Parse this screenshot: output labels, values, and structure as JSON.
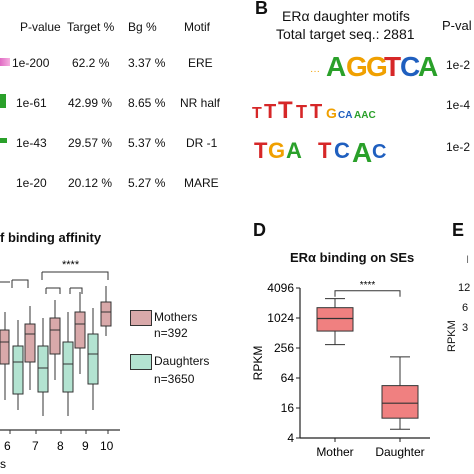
{
  "panel_a": {
    "headers": [
      "P-value",
      "Target %",
      "Bg %",
      "Motif"
    ],
    "rows": [
      {
        "pvalue": "1e-200",
        "target": "62.2 %",
        "bg": "3.37 %",
        "motif": "ERE"
      },
      {
        "pvalue": "1e-61",
        "target": "42.99 %",
        "bg": "8.65 %",
        "motif": "NR half"
      },
      {
        "pvalue": "1e-43",
        "target": "29.57 %",
        "bg": "5.37 %",
        "motif": "DR -1"
      },
      {
        "pvalue": "1e-20",
        "target": "20.12 %",
        "bg": "5.27 %",
        "motif": "MARE"
      }
    ]
  },
  "panel_b": {
    "letter": "B",
    "title_line1": "ERα daughter motifs",
    "title_line2": "Total target seq.: 2881",
    "pvalue_header": "P-val",
    "pvalues": [
      "1e-2",
      "1e-4",
      "1e-2"
    ],
    "logos": [
      "AGGTCA",
      "TGTTTG",
      "TGA TCAC"
    ]
  },
  "panel_c": {
    "title": "f binding affinity",
    "sig_label": "****",
    "legend": [
      {
        "label": "Mothers",
        "count": "n=392",
        "color": "#d9a9aa"
      },
      {
        "label": "Daughters",
        "count": "n=3650",
        "color": "#b3e3d1"
      }
    ],
    "x_ticks": [
      "6",
      "7",
      "8",
      "9",
      "10"
    ],
    "xlabel_fragment": "s"
  },
  "panel_d": {
    "letter": "D",
    "title": "ERα binding on SEs",
    "sig_label": "****"
  },
  "panel_e": {
    "letter": "E",
    "y_ticks": [
      "12",
      "6",
      "3"
    ],
    "ylabel": "RPKM"
  },
  "chart_data": {
    "type": "box",
    "title": "ERα binding on SEs",
    "ylabel": "RPKM",
    "y_scale": "log2",
    "y_ticks": [
      "4",
      "16",
      "64",
      "256",
      "1024",
      "4096"
    ],
    "ylim": [
      4,
      4096
    ],
    "categories": [
      "Mother",
      "Daughter"
    ],
    "boxes": [
      {
        "name": "Mother",
        "min": 300,
        "q1": 560,
        "median": 1000,
        "q3": 1650,
        "max": 2500,
        "color": "#f08080"
      },
      {
        "name": "Daughter",
        "min": 6,
        "q1": 10,
        "median": 20,
        "q3": 45,
        "max": 170,
        "color": "#f08080"
      }
    ]
  }
}
